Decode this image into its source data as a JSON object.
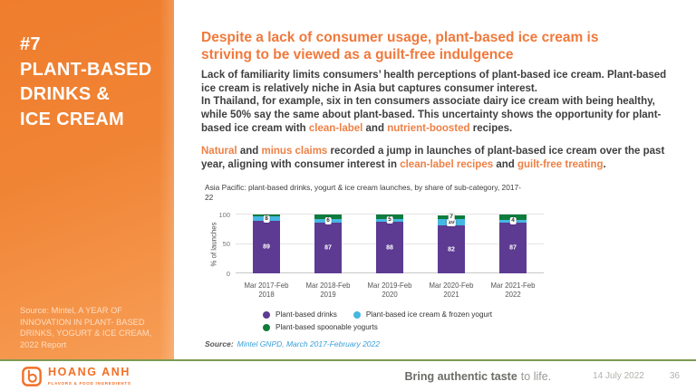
{
  "sidebar": {
    "title": "#7\nPLANT-BASED\nDRINKS &\nICE CREAM",
    "source": "Source: Mintel, A YEAR OF INNOVATION IN PLANT- BASED DRINKS, YOGURT & ICE CREAM, 2022 Report"
  },
  "main": {
    "heading": "Despite a lack of consumer usage, plant-based ice cream is\nstriving to be viewed as a guilt-free indulgence",
    "paragraph1": [
      {
        "t": "Lack of familiarity limits consumers’ health perceptions of plant-based ice cream. Plant-based\nice cream is relatively niche in Asia but captures consumer interest.\nIn Thailand, for example, six in ten consumers associate dairy ice cream with being healthy,\nwhile 50% say the same about plant-based. This uncertainty shows the opportunity for plant-\nbased ice cream with ",
        "h": false
      },
      {
        "t": "clean-label",
        "h": true
      },
      {
        "t": " and ",
        "h": false
      },
      {
        "t": "nutrient-boosted",
        "h": true
      },
      {
        "t": " recipes.",
        "h": false
      }
    ],
    "paragraph2": [
      {
        "t": "Natural",
        "h": true
      },
      {
        "t": " and ",
        "h": false
      },
      {
        "t": "minus claims",
        "h": true
      },
      {
        "t": " recorded a jump in launches of plant-based ice cream over the past\nyear, aligning with consumer interest in ",
        "h": false
      },
      {
        "t": "clean-label recipes",
        "h": true
      },
      {
        "t": " and ",
        "h": false
      },
      {
        "t": "guilt-free treating",
        "h": true
      },
      {
        "t": ".",
        "h": false
      }
    ]
  },
  "chart_data": {
    "type": "stacked-bar",
    "title": "Asia Pacific: plant-based drinks, yogurt & ice cream launches, by share of sub-category, 2017-\n22",
    "ylabel": "% of launches",
    "ylim": [
      0,
      100
    ],
    "yticks": [
      0,
      50,
      100
    ],
    "categories": [
      "Mar 2017-Feb 2018",
      "Mar 2018-Feb 2019",
      "Mar 2019-Feb 2020",
      "Mar 2020-Feb 2021",
      "Mar 2021-Feb 2022"
    ],
    "series": [
      {
        "name": "Plant-based drinks",
        "color": "#5d3b92",
        "values": [
          89,
          87,
          88,
          82,
          87
        ],
        "labels": [
          "89",
          "87",
          "88",
          "82",
          "87"
        ]
      },
      {
        "name": "Plant-based ice cream & frozen yogurt",
        "color": "#44b7e2",
        "values": [
          8,
          6,
          5,
          10,
          4
        ],
        "labels": [
          "8",
          "6",
          "5",
          "10",
          "4"
        ]
      },
      {
        "name": "Plant-based spoonable yogurts",
        "color": "#0e7c3c",
        "values": [
          3,
          7,
          7,
          7,
          9
        ],
        "labels": [
          "",
          "",
          "",
          "7",
          ""
        ]
      }
    ],
    "legend_position": "bottom",
    "source_prefix": "Source:",
    "source": "Mintel GNPD, March 2017-February 2022"
  },
  "footer": {
    "brand": "HOANG ANH",
    "brand_subtitle": "FLAVORS & FOOD INGREDIENTS",
    "tagline_bold": "Bring authentic taste",
    "tagline_light": "to life.",
    "date": "14 July 2022",
    "page_number": "36"
  },
  "colors": {
    "sidebar_orange_top": "#ef7d2d",
    "sidebar_orange_bottom": "#f79e56",
    "heading_orange": "#f0793b",
    "highlight_orange": "#ee8045",
    "footer_line_green": "#7d9a52",
    "logo_orange": "#f26f26",
    "chart_source_blue": "#3a9fd8"
  }
}
